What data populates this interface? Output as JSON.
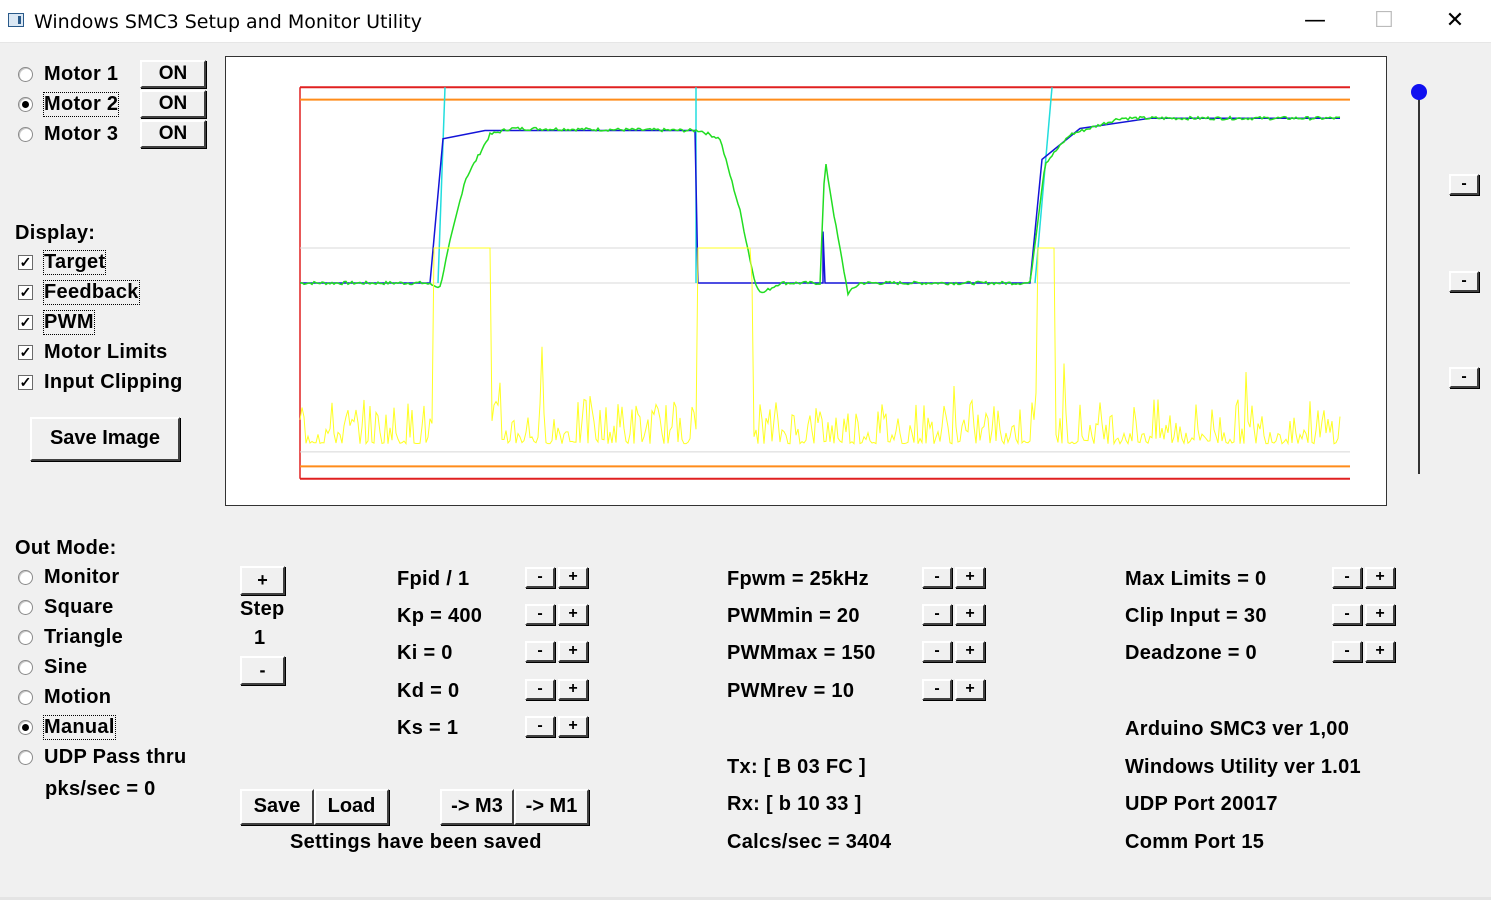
{
  "window": {
    "title": "Windows SMC3 Setup and Monitor Utility",
    "minimize": "—",
    "maximize": "☐",
    "close": "✕"
  },
  "motors": [
    {
      "label": "Motor 1",
      "button": "ON",
      "selected": false
    },
    {
      "label": "Motor 2",
      "button": "ON",
      "selected": true
    },
    {
      "label": "Motor 3",
      "button": "ON",
      "selected": false
    }
  ],
  "display": {
    "heading": "Display:",
    "options": [
      {
        "label": "Target",
        "checked": true
      },
      {
        "label": "Feedback",
        "checked": true
      },
      {
        "label": "PWM",
        "checked": true
      },
      {
        "label": "Motor Limits",
        "checked": true
      },
      {
        "label": "Input Clipping",
        "checked": true
      }
    ],
    "save_image": "Save Image"
  },
  "out_mode": {
    "heading": "Out Mode:",
    "options": [
      {
        "label": "Monitor",
        "selected": false
      },
      {
        "label": "Square",
        "selected": false
      },
      {
        "label": "Triangle",
        "selected": false
      },
      {
        "label": "Sine",
        "selected": false
      },
      {
        "label": "Motion",
        "selected": false
      },
      {
        "label": "Manual",
        "selected": true
      },
      {
        "label": "UDP Pass thru",
        "selected": false
      }
    ],
    "pks": "pks/sec = 0"
  },
  "step": {
    "plus": "+",
    "label": "Step",
    "value": "1",
    "minus": "-"
  },
  "pid": [
    {
      "label": "Fpid / 1"
    },
    {
      "label": "Kp = 400"
    },
    {
      "label": "Ki = 0"
    },
    {
      "label": "Kd = 0"
    },
    {
      "label": "Ks = 1"
    }
  ],
  "pwm": [
    {
      "label": "Fpwm = 25kHz"
    },
    {
      "label": "PWMmin = 20"
    },
    {
      "label": "PWMmax = 150"
    },
    {
      "label": "PWMrev = 10"
    }
  ],
  "limits": [
    {
      "label": "Max Limits = 0"
    },
    {
      "label": "Clip Input = 30"
    },
    {
      "label": "Deadzone = 0"
    }
  ],
  "pm": {
    "minus": "-",
    "plus": "+"
  },
  "side_minus": "-",
  "buttons": {
    "save": "Save",
    "load": "Load",
    "to_m3": "-> M3",
    "to_m1": "-> M1"
  },
  "status": {
    "settings": "Settings have been saved",
    "tx": "Tx: [ B 03 FC ]",
    "rx": "Rx: [ b 10 33 ]",
    "calcs": "Calcs/sec = 3404",
    "arduino": "Arduino SMC3 ver 1,00",
    "utility": "Windows Utility ver 1.01",
    "udp": "UDP Port 20017",
    "comm": "Comm Port 15"
  },
  "colors": {
    "limit_outer": "#e02020",
    "limit_inner": "#ff8c1a",
    "target": "#1414d8",
    "feedback": "#22dd22",
    "pwm": "#ffff22",
    "clip": "#22dddd",
    "center": "#d8d8d8"
  },
  "chart_data": {
    "type": "line",
    "series": [
      {
        "key": "target",
        "values": [
          [
            0,
            0
          ],
          [
            130,
            0
          ],
          [
            143,
            70
          ],
          [
            185,
            74
          ],
          [
            395,
            74
          ],
          [
            398,
            0
          ],
          [
            523,
            0
          ],
          [
            523,
            25
          ],
          [
            525,
            0
          ],
          [
            730,
            0
          ],
          [
            742,
            60
          ],
          [
            780,
            75
          ],
          [
            850,
            80
          ],
          [
            1040,
            80
          ]
        ]
      },
      {
        "key": "feedback",
        "values": [
          [
            0,
            0
          ],
          [
            125,
            0
          ],
          [
            140,
            -2
          ],
          [
            150,
            20
          ],
          [
            165,
            50
          ],
          [
            190,
            72
          ],
          [
            210,
            75
          ],
          [
            400,
            74
          ],
          [
            420,
            70
          ],
          [
            440,
            35
          ],
          [
            455,
            0
          ],
          [
            462,
            -5
          ],
          [
            480,
            0
          ],
          [
            520,
            0
          ],
          [
            525,
            60
          ],
          [
            535,
            30
          ],
          [
            548,
            -5
          ],
          [
            560,
            0
          ],
          [
            730,
            0
          ],
          [
            745,
            58
          ],
          [
            770,
            72
          ],
          [
            820,
            80
          ],
          [
            1040,
            80
          ]
        ]
      },
      {
        "key": "pwm",
        "values": [
          [
            0,
            -62
          ],
          [
            128,
            -62
          ],
          [
            130,
            -62
          ],
          [
            134,
            17
          ],
          [
            190,
            17
          ],
          [
            194,
            -78
          ],
          [
            196,
            -62
          ],
          [
            396,
            -62
          ],
          [
            398,
            17
          ],
          [
            450,
            17
          ],
          [
            460,
            -62
          ],
          [
            470,
            -62
          ],
          [
            540,
            -62
          ],
          [
            545,
            -78
          ],
          [
            735,
            -62
          ],
          [
            737,
            17
          ],
          [
            755,
            17
          ],
          [
            758,
            -62
          ],
          [
            1040,
            -62
          ]
        ]
      }
    ],
    "ylim": [
      -100,
      100
    ],
    "xlim": [
      0,
      1040
    ],
    "limits": {
      "outer": [
        95,
        -95
      ],
      "inner": [
        89,
        -89
      ],
      "clip": [
        17,
        -82
      ]
    }
  }
}
